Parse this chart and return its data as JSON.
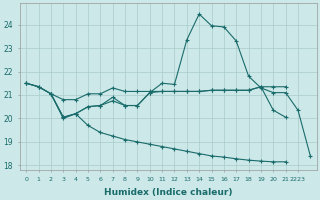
{
  "xlabel": "Humidex (Indice chaleur)",
  "bg_color": "#cce8e8",
  "grid_color": "#aacccc",
  "line_color": "#1a6b6b",
  "xlim": [
    -0.5,
    23.5
  ],
  "ylim": [
    17.8,
    24.9
  ],
  "yticks": [
    18,
    19,
    20,
    21,
    22,
    23,
    24
  ],
  "xtick_labels": [
    "0",
    "1",
    "2",
    "3",
    "4",
    "5",
    "6",
    "7",
    "8",
    "9",
    "10",
    "11",
    "12",
    "13",
    "14",
    "15",
    "16",
    "17",
    "18",
    "19",
    "20",
    "21",
    "2223"
  ],
  "line1_x": [
    0,
    1,
    2,
    3,
    4,
    5,
    6,
    7,
    8,
    9,
    10,
    11,
    12,
    13,
    14,
    15,
    16,
    17,
    18,
    19,
    20,
    21
  ],
  "line1_y": [
    21.5,
    21.35,
    21.05,
    20.8,
    20.8,
    21.05,
    21.05,
    21.3,
    21.15,
    21.15,
    21.15,
    21.15,
    21.15,
    21.15,
    21.15,
    21.2,
    21.2,
    21.2,
    21.2,
    21.35,
    21.35,
    21.35
  ],
  "line2_x": [
    2,
    3,
    4,
    5,
    6,
    7,
    8,
    9,
    10,
    11,
    12,
    13,
    14,
    15,
    16,
    17,
    18,
    19,
    20,
    21,
    22,
    23
  ],
  "line2_y": [
    21.05,
    20.0,
    20.2,
    20.5,
    20.55,
    20.9,
    20.55,
    20.55,
    21.1,
    21.5,
    21.45,
    23.35,
    24.45,
    23.95,
    23.9,
    23.3,
    21.8,
    21.3,
    21.1,
    21.1,
    20.35,
    18.4
  ],
  "line3_x": [
    0,
    1,
    2,
    3,
    4,
    5,
    6,
    7,
    8,
    9,
    10,
    11,
    12,
    13,
    14,
    15,
    16,
    17,
    18,
    19,
    20,
    21
  ],
  "line3_y": [
    21.5,
    21.35,
    21.05,
    20.05,
    20.2,
    20.5,
    20.55,
    20.75,
    20.55,
    20.55,
    21.1,
    21.15,
    21.15,
    21.15,
    21.15,
    21.2,
    21.2,
    21.2,
    21.2,
    21.35,
    20.35,
    20.05
  ],
  "line4_x": [
    0,
    1,
    2,
    3,
    4,
    5,
    6,
    7,
    8,
    9,
    10,
    11,
    12,
    13,
    14,
    15,
    16,
    17,
    18,
    19,
    20,
    21,
    22,
    23
  ],
  "line4_y": [
    21.5,
    21.35,
    21.05,
    20.05,
    20.2,
    19.7,
    19.4,
    19.25,
    19.1,
    19.0,
    18.9,
    18.8,
    18.7,
    18.6,
    18.5,
    18.4,
    18.35,
    18.28,
    18.22,
    18.18,
    18.15,
    18.15,
    null,
    null
  ]
}
